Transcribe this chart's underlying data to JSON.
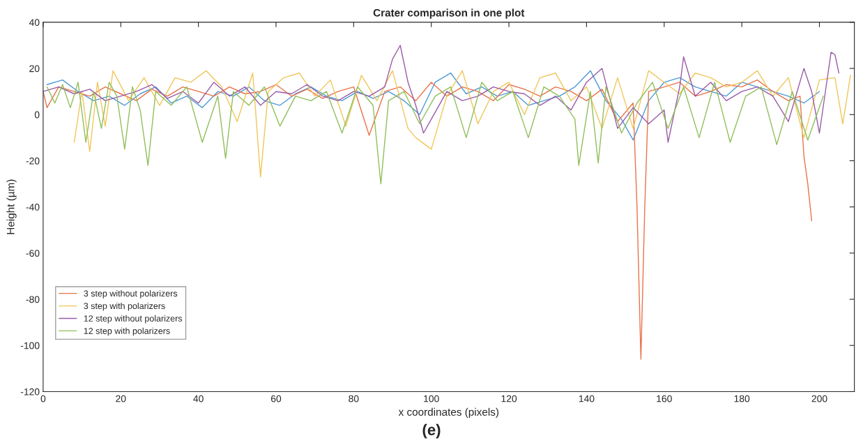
{
  "chart_data": {
    "type": "line",
    "title": "Crater comparison in one plot",
    "xlabel": "x coordinates (pixels)",
    "ylabel": "Height (µm)",
    "annotations": [
      "(e)"
    ],
    "xlim": [
      0,
      209
    ],
    "xticks": [
      0,
      20,
      40,
      60,
      80,
      100,
      120,
      140,
      160,
      180,
      200
    ],
    "ylim": [
      -120,
      40
    ],
    "yticks": [
      -120,
      -100,
      -80,
      -60,
      -40,
      -20,
      0,
      20,
      40
    ],
    "grid": false,
    "legend": "bottom left",
    "marker": "none",
    "line_style": "solid",
    "series": [
      {
        "color": "#4d9ad6",
        "x": [
          1,
          5,
          9,
          13,
          17,
          21,
          25,
          29,
          33,
          37,
          41,
          45,
          49,
          53,
          57,
          61,
          65,
          69,
          73,
          77,
          81,
          85,
          89,
          93,
          97,
          101,
          105,
          109,
          113,
          117,
          121,
          125,
          129,
          133,
          137,
          141,
          145,
          149,
          152,
          156,
          160,
          164,
          168,
          172,
          176,
          180,
          184,
          188,
          192,
          196,
          200
        ],
        "values": [
          13,
          15,
          10,
          6,
          8,
          4,
          9,
          12,
          5,
          8,
          3,
          10,
          8,
          12,
          6,
          4,
          9,
          12,
          8,
          6,
          10,
          7,
          10,
          6,
          0,
          14,
          18,
          9,
          12,
          8,
          10,
          4,
          6,
          8,
          12,
          19,
          6,
          -2,
          -11,
          6,
          14,
          16,
          12,
          10,
          8,
          14,
          12,
          10,
          8,
          5,
          10
        ]
      },
      {
        "name": "3 step without polarizers",
        "color": "#e8734a",
        "x": [
          0,
          1,
          4,
          8,
          12,
          16,
          20,
          24,
          28,
          32,
          36,
          40,
          44,
          48,
          52,
          56,
          60,
          64,
          68,
          72,
          76,
          80,
          84,
          88,
          92,
          96,
          100,
          104,
          108,
          112,
          116,
          120,
          124,
          128,
          132,
          136,
          140,
          144,
          148,
          152,
          153,
          154,
          155,
          156,
          160,
          164,
          168,
          172,
          176,
          180,
          184,
          188,
          192,
          195,
          196,
          197,
          198
        ],
        "values": [
          10,
          3,
          12,
          10,
          8,
          12,
          9,
          6,
          11,
          8,
          12,
          10,
          8,
          12,
          9,
          10,
          13,
          8,
          11,
          7,
          10,
          12,
          -9,
          10,
          12,
          6,
          14,
          8,
          12,
          10,
          6,
          13,
          11,
          8,
          12,
          10,
          6,
          11,
          -3,
          5,
          -40,
          -106,
          -40,
          10,
          12,
          14,
          8,
          10,
          13,
          12,
          15,
          10,
          6,
          8,
          -18,
          -30,
          -46
        ]
      },
      {
        "name": "3 step with polarizers",
        "color": "#f0c65a",
        "x": [
          8,
          10,
          12,
          14,
          16,
          18,
          22,
          26,
          30,
          34,
          38,
          42,
          46,
          50,
          54,
          56,
          58,
          62,
          66,
          70,
          74,
          78,
          82,
          86,
          90,
          94,
          96,
          100,
          104,
          108,
          112,
          116,
          120,
          124,
          128,
          132,
          136,
          140,
          144,
          148,
          152,
          156,
          160,
          164,
          168,
          172,
          176,
          180,
          184,
          188,
          192,
          196,
          200,
          204,
          206,
          208
        ],
        "values": [
          -12,
          10,
          -16,
          14,
          -5,
          19,
          6,
          16,
          4,
          16,
          14,
          19,
          12,
          -3,
          18,
          -27,
          10,
          16,
          18,
          8,
          15,
          -5,
          17,
          6,
          19,
          -6,
          -10,
          -15,
          8,
          19,
          -4,
          10,
          14,
          0,
          16,
          18,
          6,
          12,
          -6,
          16,
          -6,
          19,
          14,
          9,
          18,
          16,
          12,
          14,
          19,
          8,
          16,
          -10,
          15,
          16,
          -4,
          17
        ]
      },
      {
        "name": "12 step without polarizers",
        "color": "#9b5aa8",
        "x": [
          0,
          4,
          8,
          12,
          16,
          20,
          24,
          28,
          32,
          36,
          40,
          44,
          48,
          52,
          56,
          60,
          64,
          68,
          72,
          76,
          80,
          84,
          88,
          90,
          92,
          94,
          96,
          98,
          100,
          104,
          108,
          112,
          116,
          120,
          124,
          128,
          132,
          136,
          140,
          144,
          148,
          152,
          156,
          160,
          161,
          164,
          165,
          168,
          172,
          176,
          180,
          184,
          188,
          192,
          196,
          198,
          200,
          203,
          204,
          205
        ],
        "values": [
          10,
          12,
          9,
          11,
          6,
          8,
          10,
          13,
          7,
          10,
          5,
          14,
          8,
          12,
          4,
          10,
          9,
          13,
          8,
          6,
          10,
          8,
          12,
          24,
          30,
          14,
          4,
          -8,
          -2,
          10,
          6,
          8,
          12,
          10,
          9,
          4,
          8,
          2,
          14,
          20,
          -6,
          3,
          -4,
          2,
          -12,
          12,
          25,
          8,
          14,
          6,
          10,
          12,
          8,
          -3,
          20,
          10,
          -8,
          27,
          26,
          18
        ]
      },
      {
        "name": "12 step with polarizers",
        "color": "#8fbf5a",
        "x": [
          1,
          3,
          5,
          7,
          9,
          11,
          13,
          15,
          17,
          19,
          21,
          23,
          25,
          27,
          29,
          33,
          37,
          41,
          45,
          47,
          49,
          53,
          57,
          61,
          65,
          69,
          73,
          77,
          81,
          85,
          87,
          89,
          93,
          97,
          101,
          105,
          109,
          113,
          117,
          121,
          125,
          129,
          133,
          137,
          138,
          141,
          143,
          145,
          149,
          153,
          157,
          161,
          165,
          169,
          173,
          177,
          181,
          185,
          189,
          193,
          197,
          201
        ],
        "values": [
          12,
          5,
          13,
          3,
          14,
          -12,
          10,
          -6,
          14,
          8,
          -15,
          12,
          2,
          -22,
          10,
          4,
          12,
          -12,
          8,
          -19,
          10,
          4,
          12,
          -5,
          8,
          6,
          10,
          -8,
          12,
          4,
          -30,
          6,
          10,
          -4,
          8,
          12,
          -10,
          14,
          6,
          10,
          -10,
          12,
          8,
          -2,
          -22,
          10,
          -21,
          12,
          -8,
          5,
          14,
          -6,
          12,
          -10,
          14,
          -12,
          8,
          12,
          -13,
          10,
          -11,
          8
        ]
      }
    ]
  }
}
